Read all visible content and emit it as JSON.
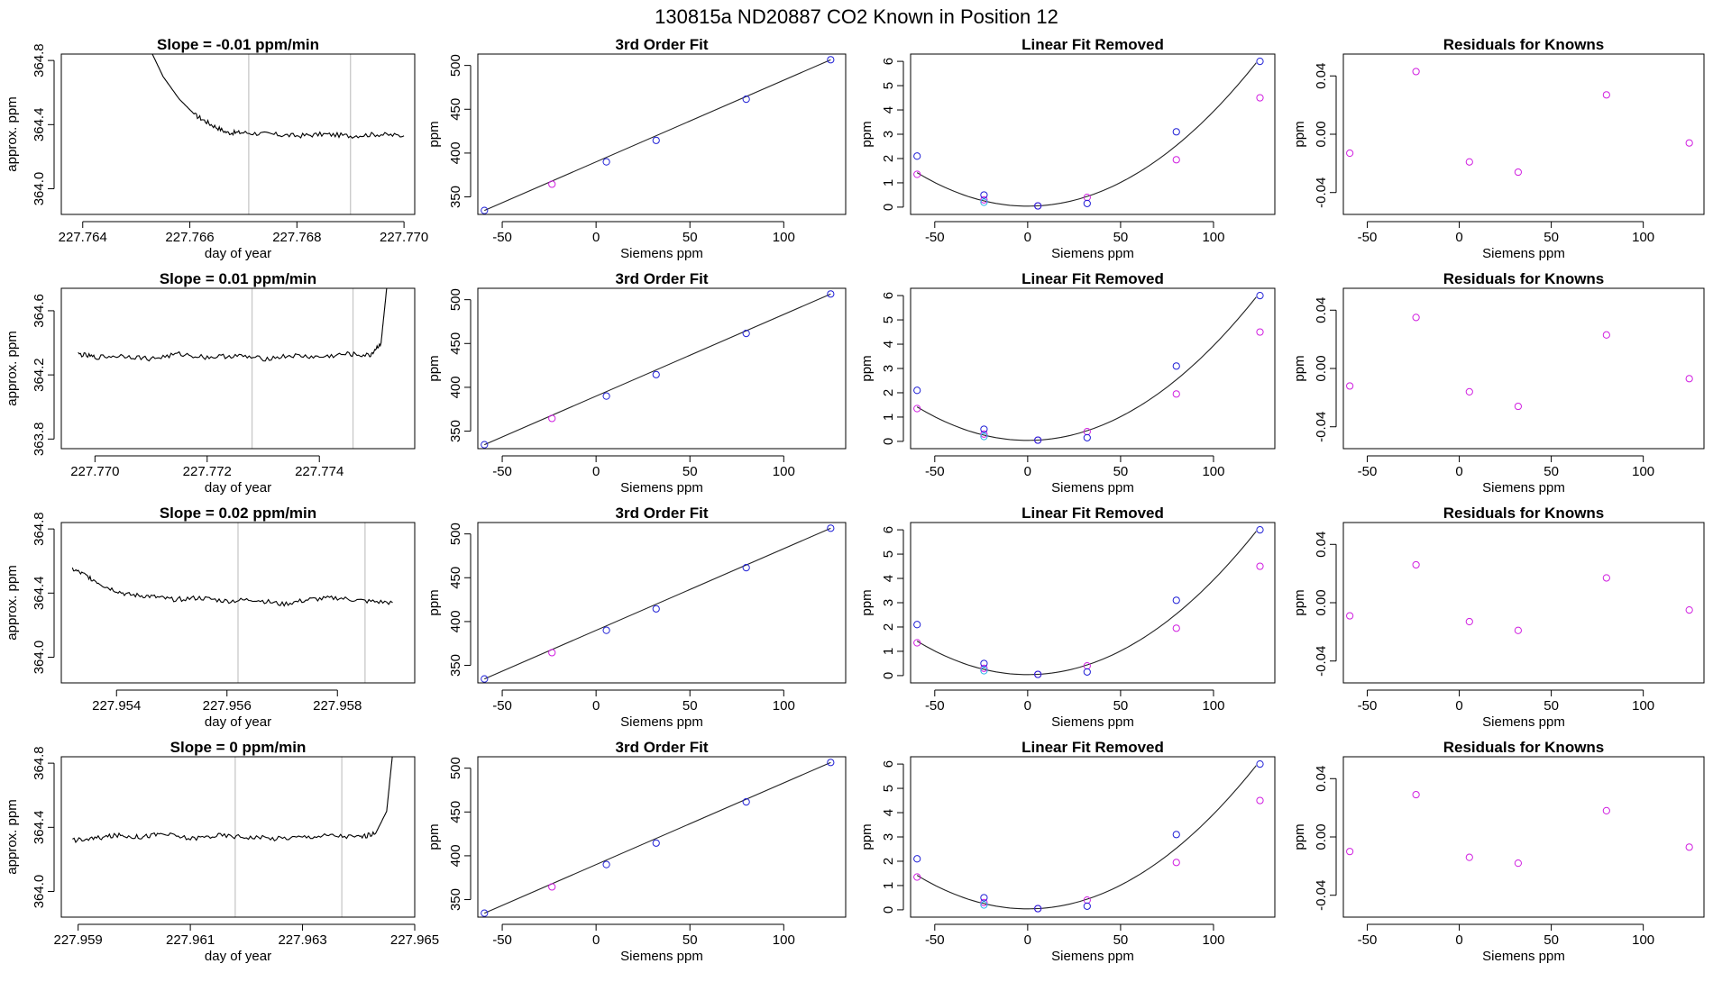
{
  "title": "130815a      ND20887    CO2 Known in Position  12",
  "colors": {
    "axis": "#000000",
    "trace": "#000000",
    "vline": "#c8c8c8",
    "point_blue": "#1f1fd6",
    "point_magenta": "#d01ee0",
    "point_cyan": "#2ab0e8",
    "trace_red": "#d02020",
    "curve": "#222222"
  },
  "chart_data": [
    {
      "type": "line",
      "row": 1,
      "col": 1,
      "title": "Slope =  -0.01  ppm/min",
      "xlabel": "day of year",
      "ylabel": "approx. ppm",
      "xlim": [
        227.7636,
        227.7702
      ],
      "ylim": [
        363.84,
        364.84
      ],
      "xticks": [
        227.764,
        227.766,
        227.768,
        227.77
      ],
      "xticklabels": [
        "227.764",
        "227.766",
        "227.768",
        "227.770"
      ],
      "yticks": [
        364.0,
        364.4,
        364.8
      ],
      "yticklabels": [
        "364.0",
        "364.4",
        "364.8"
      ],
      "vlines": [
        227.7671,
        227.769
      ],
      "trace": {
        "x": [
          227.7653,
          227.7655,
          227.7658,
          227.7661,
          227.7664,
          227.7667,
          227.767,
          227.7675,
          227.768,
          227.7685,
          227.769,
          227.7695,
          227.77
        ],
        "y": [
          364.84,
          364.7,
          364.56,
          364.46,
          364.4,
          364.35,
          364.35,
          364.34,
          364.33,
          364.34,
          364.33,
          364.34,
          364.33
        ]
      }
    },
    {
      "type": "scatter",
      "row": 1,
      "col": 2,
      "title": "3rd Order Fit",
      "xlabel": "Siemens ppm",
      "ylabel": "ppm",
      "xlim": [
        -63,
        133
      ],
      "ylim": [
        330,
        513
      ],
      "xticks": [
        -50,
        0,
        50,
        100
      ],
      "xticklabels": [
        "-50",
        "0",
        "50",
        "100"
      ],
      "yticks": [
        350,
        400,
        450,
        500
      ],
      "yticklabels": [
        "350",
        "400",
        "450",
        "500"
      ],
      "x": [
        -59.5,
        -23.5,
        5.5,
        32.0,
        80.0,
        125.0
      ],
      "y": [
        334.5,
        364.5,
        390.0,
        414.5,
        461.5,
        506.5
      ],
      "point_series": [
        "blue",
        "magenta",
        "blue",
        "blue",
        "blue",
        "blue"
      ],
      "fit": {
        "x": [
          -59.5,
          125.0
        ],
        "y": [
          334.5,
          506.5
        ]
      }
    },
    {
      "type": "scatter",
      "row": 1,
      "col": 3,
      "title": "Linear Fit Removed",
      "xlabel": "Siemens ppm",
      "ylabel": "ppm",
      "xlim": [
        -63,
        133
      ],
      "ylim": [
        -0.3,
        6.3
      ],
      "xticks": [
        -50,
        0,
        50,
        100
      ],
      "xticklabels": [
        "-50",
        "0",
        "50",
        "100"
      ],
      "yticks": [
        0,
        1,
        2,
        3,
        4,
        5,
        6
      ],
      "yticklabels": [
        "0",
        "1",
        "2",
        "3",
        "4",
        "5",
        "6"
      ],
      "blue": {
        "x": [
          -59.5,
          -23.5,
          5.5,
          32.0,
          80.0,
          125.0
        ],
        "y": [
          2.1,
          0.5,
          0.05,
          0.15,
          3.1,
          6.0
        ]
      },
      "magenta": {
        "x": [
          -59.5,
          -23.5,
          5.5,
          32.0,
          80.0,
          125.0
        ],
        "y": [
          1.35,
          0.3,
          0.05,
          0.4,
          1.95,
          4.5
        ]
      },
      "cyan": {
        "x": [
          -23.5
        ],
        "y": [
          0.2
        ]
      },
      "curve_coeffs": [
        0.04,
        0.0,
        0.00039
      ]
    },
    {
      "type": "scatter",
      "row": 1,
      "col": 4,
      "title": "Residuals for Knowns",
      "xlabel": "Siemens ppm",
      "ylabel": "ppm",
      "xlim": [
        -63,
        133
      ],
      "ylim": [
        -0.055,
        0.055
      ],
      "xticks": [
        -50,
        0,
        50,
        100
      ],
      "xticklabels": [
        "-50",
        "0",
        "50",
        "100"
      ],
      "yticks": [
        -0.04,
        0.0,
        0.04
      ],
      "yticklabels": [
        "-0.04",
        "0.00",
        "0.04"
      ],
      "x": [
        -59.5,
        -23.5,
        5.5,
        32.0,
        80.0,
        125.0
      ],
      "y": [
        -0.013,
        0.043,
        -0.019,
        -0.026,
        0.027,
        -0.006
      ]
    },
    {
      "type": "line",
      "row": 2,
      "col": 1,
      "title": "Slope =  0.01  ppm/min",
      "xlabel": "day of year",
      "ylabel": "approx. ppm",
      "xlim": [
        227.7694,
        227.7757
      ],
      "ylim": [
        363.74,
        364.74
      ],
      "xticks": [
        227.77,
        227.772,
        227.774
      ],
      "xticklabels": [
        "227.770",
        "227.772",
        "227.774"
      ],
      "yticks": [
        363.8,
        364.2,
        364.6
      ],
      "yticklabels": [
        "363.8",
        "364.2",
        "364.6"
      ],
      "vlines": [
        227.7728,
        227.7746
      ],
      "trace": {
        "x": [
          227.7697,
          227.77,
          227.7705,
          227.771,
          227.7715,
          227.772,
          227.7725,
          227.773,
          227.7735,
          227.774,
          227.7745,
          227.7749,
          227.7751,
          227.7752
        ],
        "y": [
          364.33,
          364.31,
          364.32,
          364.3,
          364.33,
          364.31,
          364.32,
          364.3,
          364.32,
          364.31,
          364.33,
          364.32,
          364.4,
          364.74
        ]
      }
    },
    {
      "type": "scatter",
      "row": 2,
      "col": 2,
      "title": "3rd Order Fit",
      "xlabel": "Siemens ppm",
      "ylabel": "ppm",
      "xlim": [
        -63,
        133
      ],
      "ylim": [
        330,
        513
      ],
      "xticks": [
        -50,
        0,
        50,
        100
      ],
      "xticklabels": [
        "-50",
        "0",
        "50",
        "100"
      ],
      "yticks": [
        350,
        400,
        450,
        500
      ],
      "yticklabels": [
        "350",
        "400",
        "450",
        "500"
      ],
      "x": [
        -59.5,
        -23.5,
        5.5,
        32.0,
        80.0,
        125.0
      ],
      "y": [
        334.5,
        364.5,
        390.0,
        414.5,
        461.5,
        506.5
      ],
      "point_series": [
        "blue",
        "magenta",
        "blue",
        "blue",
        "blue",
        "blue"
      ],
      "fit": {
        "x": [
          -59.5,
          125.0
        ],
        "y": [
          334.5,
          506.5
        ]
      }
    },
    {
      "type": "scatter",
      "row": 2,
      "col": 3,
      "title": "Linear Fit Removed",
      "xlabel": "Siemens ppm",
      "ylabel": "ppm",
      "xlim": [
        -63,
        133
      ],
      "ylim": [
        -0.3,
        6.3
      ],
      "xticks": [
        -50,
        0,
        50,
        100
      ],
      "xticklabels": [
        "-50",
        "0",
        "50",
        "100"
      ],
      "yticks": [
        0,
        1,
        2,
        3,
        4,
        5,
        6
      ],
      "yticklabels": [
        "0",
        "1",
        "2",
        "3",
        "4",
        "5",
        "6"
      ],
      "blue": {
        "x": [
          -59.5,
          -23.5,
          5.5,
          32.0,
          80.0,
          125.0
        ],
        "y": [
          2.1,
          0.5,
          0.05,
          0.15,
          3.1,
          6.0
        ]
      },
      "magenta": {
        "x": [
          -59.5,
          -23.5,
          5.5,
          32.0,
          80.0,
          125.0
        ],
        "y": [
          1.35,
          0.3,
          0.05,
          0.4,
          1.95,
          4.5
        ]
      },
      "cyan": {
        "x": [
          -23.5
        ],
        "y": [
          0.2
        ]
      },
      "curve_coeffs": [
        0.04,
        0.0,
        0.00039
      ]
    },
    {
      "type": "scatter",
      "row": 2,
      "col": 4,
      "title": "Residuals for Knowns",
      "xlabel": "Siemens ppm",
      "ylabel": "ppm",
      "xlim": [
        -63,
        133
      ],
      "ylim": [
        -0.055,
        0.055
      ],
      "xticks": [
        -50,
        0,
        50,
        100
      ],
      "xticklabels": [
        "-50",
        "0",
        "50",
        "100"
      ],
      "yticks": [
        -0.04,
        0.0,
        0.04
      ],
      "yticklabels": [
        "-0.04",
        "0.00",
        "0.04"
      ],
      "x": [
        -59.5,
        -23.5,
        5.5,
        32.0,
        80.0,
        125.0
      ],
      "y": [
        -0.012,
        0.035,
        -0.016,
        -0.026,
        0.023,
        -0.007
      ]
    },
    {
      "type": "line",
      "row": 3,
      "col": 1,
      "title": "Slope =  0.02  ppm/min",
      "xlabel": "day of year",
      "ylabel": "approx. ppm",
      "xlim": [
        227.953,
        227.9594
      ],
      "ylim": [
        363.84,
        364.84
      ],
      "xticks": [
        227.954,
        227.956,
        227.958
      ],
      "xticklabels": [
        "227.954",
        "227.956",
        "227.958"
      ],
      "yticks": [
        364.0,
        364.4,
        364.8
      ],
      "yticklabels": [
        "364.0",
        "364.4",
        "364.8"
      ],
      "vlines": [
        227.9562,
        227.9585
      ],
      "trace": {
        "x": [
          227.9532,
          227.9535,
          227.9538,
          227.9542,
          227.9546,
          227.955,
          227.9555,
          227.956,
          227.9565,
          227.957,
          227.9575,
          227.958,
          227.9585,
          227.959
        ],
        "y": [
          364.55,
          364.5,
          364.44,
          364.39,
          364.38,
          364.36,
          364.37,
          364.35,
          364.36,
          364.33,
          364.36,
          364.37,
          364.35,
          364.34
        ]
      }
    },
    {
      "type": "scatter",
      "row": 3,
      "col": 2,
      "title": "3rd Order Fit",
      "xlabel": "Siemens ppm",
      "ylabel": "ppm",
      "xlim": [
        -63,
        133
      ],
      "ylim": [
        330,
        513
      ],
      "xticks": [
        -50,
        0,
        50,
        100
      ],
      "xticklabels": [
        "-50",
        "0",
        "50",
        "100"
      ],
      "yticks": [
        350,
        400,
        450,
        500
      ],
      "yticklabels": [
        "350",
        "400",
        "450",
        "500"
      ],
      "x": [
        -59.5,
        -23.5,
        5.5,
        32.0,
        80.0,
        125.0
      ],
      "y": [
        334.5,
        364.5,
        390.0,
        414.5,
        461.5,
        506.5
      ],
      "point_series": [
        "blue",
        "magenta",
        "blue",
        "blue",
        "blue",
        "blue"
      ],
      "fit": {
        "x": [
          -59.5,
          125.0
        ],
        "y": [
          334.5,
          506.5
        ]
      }
    },
    {
      "type": "scatter",
      "row": 3,
      "col": 3,
      "title": "Linear Fit Removed",
      "xlabel": "Siemens ppm",
      "ylabel": "ppm",
      "xlim": [
        -63,
        133
      ],
      "ylim": [
        -0.3,
        6.3
      ],
      "xticks": [
        -50,
        0,
        50,
        100
      ],
      "xticklabels": [
        "-50",
        "0",
        "50",
        "100"
      ],
      "yticks": [
        0,
        1,
        2,
        3,
        4,
        5,
        6
      ],
      "yticklabels": [
        "0",
        "1",
        "2",
        "3",
        "4",
        "5",
        "6"
      ],
      "blue": {
        "x": [
          -59.5,
          -23.5,
          5.5,
          32.0,
          80.0,
          125.0
        ],
        "y": [
          2.1,
          0.5,
          0.05,
          0.15,
          3.1,
          6.0
        ]
      },
      "magenta": {
        "x": [
          -59.5,
          -23.5,
          5.5,
          32.0,
          80.0,
          125.0
        ],
        "y": [
          1.35,
          0.3,
          0.05,
          0.4,
          1.95,
          4.5
        ]
      },
      "cyan": {
        "x": [
          -23.5
        ],
        "y": [
          0.2
        ]
      },
      "curve_coeffs": [
        0.04,
        0.0,
        0.00039
      ]
    },
    {
      "type": "scatter",
      "row": 3,
      "col": 4,
      "title": "Residuals for Knowns",
      "xlabel": "Siemens ppm",
      "ylabel": "ppm",
      "xlim": [
        -63,
        133
      ],
      "ylim": [
        -0.055,
        0.055
      ],
      "xticks": [
        -50,
        0,
        50,
        100
      ],
      "xticklabels": [
        "-50",
        "0",
        "50",
        "100"
      ],
      "yticks": [
        -0.04,
        0.0,
        0.04
      ],
      "yticklabels": [
        "-0.04",
        "0.00",
        "0.04"
      ],
      "x": [
        -59.5,
        -23.5,
        5.5,
        32.0,
        80.0,
        125.0
      ],
      "y": [
        -0.009,
        0.026,
        -0.013,
        -0.019,
        0.017,
        -0.005
      ]
    },
    {
      "type": "line",
      "row": 4,
      "col": 1,
      "title": "Slope =  0  ppm/min",
      "xlabel": "day of year",
      "ylabel": "approx. ppm",
      "xlim": [
        227.9587,
        227.965
      ],
      "ylim": [
        363.84,
        364.84
      ],
      "xticks": [
        227.959,
        227.961,
        227.963,
        227.965
      ],
      "xticklabels": [
        "227.959",
        "227.961",
        "227.963",
        "227.965"
      ],
      "yticks": [
        364.0,
        364.4,
        364.8
      ],
      "yticklabels": [
        "364.0",
        "364.4",
        "364.8"
      ],
      "vlines": [
        227.9618,
        227.9637
      ],
      "trace": {
        "x": [
          227.9589,
          227.9593,
          227.9597,
          227.9601,
          227.9605,
          227.961,
          227.9615,
          227.962,
          227.9625,
          227.963,
          227.9635,
          227.964,
          227.9643,
          227.9645,
          227.9646
        ],
        "y": [
          364.32,
          364.33,
          364.35,
          364.34,
          364.36,
          364.33,
          364.35,
          364.34,
          364.33,
          364.34,
          364.35,
          364.34,
          364.36,
          364.5,
          364.84
        ]
      }
    },
    {
      "type": "scatter",
      "row": 4,
      "col": 2,
      "title": "3rd Order Fit",
      "xlabel": "Siemens ppm",
      "ylabel": "ppm",
      "xlim": [
        -63,
        133
      ],
      "ylim": [
        330,
        513
      ],
      "xticks": [
        -50,
        0,
        50,
        100
      ],
      "xticklabels": [
        "-50",
        "0",
        "50",
        "100"
      ],
      "yticks": [
        350,
        400,
        450,
        500
      ],
      "yticklabels": [
        "350",
        "400",
        "450",
        "500"
      ],
      "x": [
        -59.5,
        -23.5,
        5.5,
        32.0,
        80.0,
        125.0
      ],
      "y": [
        334.5,
        364.5,
        390.0,
        414.5,
        461.5,
        506.5
      ],
      "point_series": [
        "blue",
        "magenta",
        "blue",
        "blue",
        "blue",
        "blue"
      ],
      "fit": {
        "x": [
          -59.5,
          125.0
        ],
        "y": [
          334.5,
          506.5
        ]
      }
    },
    {
      "type": "scatter",
      "row": 4,
      "col": 3,
      "title": "Linear Fit Removed",
      "xlabel": "Siemens ppm",
      "ylabel": "ppm",
      "xlim": [
        -63,
        133
      ],
      "ylim": [
        -0.3,
        6.3
      ],
      "xticks": [
        -50,
        0,
        50,
        100
      ],
      "xticklabels": [
        "-50",
        "0",
        "50",
        "100"
      ],
      "yticks": [
        0,
        1,
        2,
        3,
        4,
        5,
        6
      ],
      "yticklabels": [
        "0",
        "1",
        "2",
        "3",
        "4",
        "5",
        "6"
      ],
      "blue": {
        "x": [
          -59.5,
          -23.5,
          5.5,
          32.0,
          80.0,
          125.0
        ],
        "y": [
          2.1,
          0.5,
          0.05,
          0.15,
          3.1,
          6.0
        ]
      },
      "magenta": {
        "x": [
          -59.5,
          -23.5,
          5.5,
          32.0,
          80.0,
          125.0
        ],
        "y": [
          1.35,
          0.3,
          0.05,
          0.4,
          1.95,
          4.5
        ]
      },
      "cyan": {
        "x": [
          -23.5
        ],
        "y": [
          0.2
        ]
      },
      "curve_coeffs": [
        0.04,
        0.0,
        0.00039
      ]
    },
    {
      "type": "scatter",
      "row": 4,
      "col": 4,
      "title": "Residuals for Knowns",
      "xlabel": "Siemens ppm",
      "ylabel": "ppm",
      "xlim": [
        -63,
        133
      ],
      "ylim": [
        -0.055,
        0.055
      ],
      "xticks": [
        -50,
        0,
        50,
        100
      ],
      "xticklabels": [
        "-50",
        "0",
        "50",
        "100"
      ],
      "yticks": [
        -0.04,
        0.0,
        0.04
      ],
      "yticklabels": [
        "-0.04",
        "0.00",
        "0.04"
      ],
      "x": [
        -59.5,
        -23.5,
        5.5,
        32.0,
        80.0,
        125.0
      ],
      "y": [
        -0.01,
        0.029,
        -0.014,
        -0.018,
        0.018,
        -0.007
      ]
    }
  ]
}
